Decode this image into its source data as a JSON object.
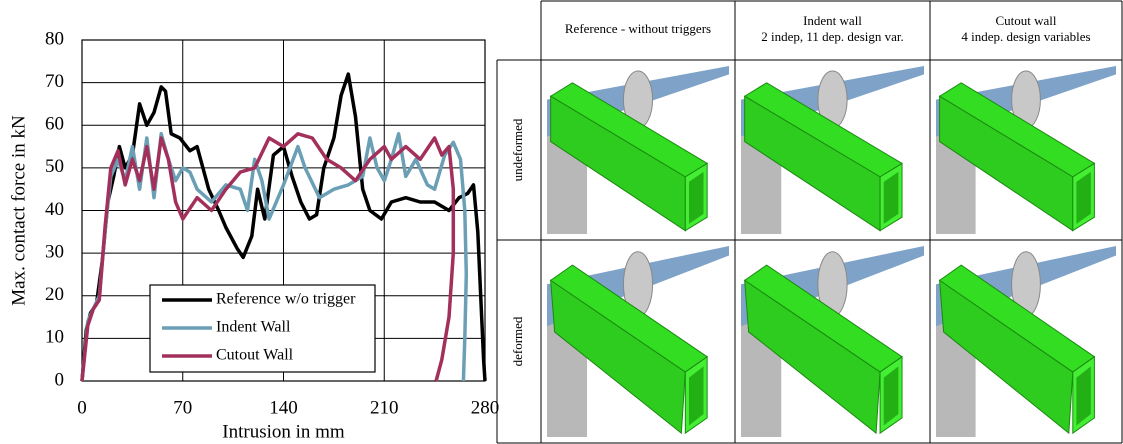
{
  "chart_data": {
    "type": "line",
    "x_label": "Intrusion in mm",
    "y_label": "Max. contact force in kN",
    "xlim": [
      0,
      280
    ],
    "xticks": [
      0,
      70,
      140,
      210,
      280
    ],
    "ylim": [
      0,
      80
    ],
    "yticks": [
      0,
      10,
      20,
      30,
      40,
      50,
      60,
      70,
      80
    ],
    "grid": true,
    "legend": "lower center",
    "series": [
      {
        "name": "Reference w/o trigger",
        "color": "#000000",
        "x": [
          0,
          3,
          6,
          10,
          14,
          18,
          22,
          26,
          30,
          35,
          40,
          45,
          50,
          55,
          58,
          62,
          68,
          75,
          80,
          88,
          95,
          100,
          108,
          112,
          118,
          122,
          127,
          133,
          140,
          146,
          152,
          158,
          163,
          168,
          175,
          180,
          185,
          190,
          195,
          200,
          208,
          215,
          225,
          235,
          245,
          255,
          262,
          268,
          272,
          275,
          277,
          279,
          280
        ],
        "values": [
          0,
          12,
          16,
          18,
          28,
          42,
          48,
          55,
          50,
          53,
          65,
          60,
          63,
          69,
          68,
          58,
          57,
          54,
          55,
          45,
          40,
          36,
          31,
          29,
          34,
          45,
          38,
          53,
          55,
          48,
          42,
          38,
          39,
          50,
          57,
          67,
          72,
          62,
          45,
          40,
          38,
          42,
          43,
          42,
          42,
          40,
          43,
          44,
          46,
          35,
          20,
          5,
          0
        ]
      },
      {
        "name": "Indent Wall",
        "color": "#6a9fb5",
        "x": [
          0,
          4,
          8,
          12,
          16,
          20,
          25,
          30,
          35,
          40,
          45,
          50,
          55,
          60,
          65,
          70,
          75,
          80,
          90,
          100,
          110,
          115,
          120,
          125,
          130,
          140,
          150,
          155,
          165,
          175,
          185,
          195,
          200,
          205,
          210,
          215,
          220,
          225,
          232,
          240,
          245,
          252,
          258,
          263,
          266,
          267,
          266,
          265
        ],
        "values": [
          0,
          14,
          17,
          20,
          35,
          48,
          52,
          47,
          55,
          45,
          57,
          43,
          58,
          52,
          47,
          50,
          49,
          45,
          42,
          46,
          45,
          40,
          52,
          47,
          38,
          46,
          55,
          50,
          43,
          45,
          46,
          48,
          57,
          50,
          47,
          52,
          58,
          48,
          52,
          46,
          45,
          53,
          56,
          52,
          40,
          25,
          10,
          0
        ]
      },
      {
        "name": "Cutout Wall",
        "color": "#a3305b",
        "x": [
          0,
          4,
          8,
          12,
          16,
          20,
          25,
          30,
          35,
          40,
          45,
          50,
          55,
          60,
          65,
          70,
          80,
          90,
          100,
          110,
          120,
          130,
          140,
          150,
          160,
          170,
          180,
          190,
          200,
          210,
          215,
          225,
          235,
          245,
          250,
          255,
          258,
          258,
          255,
          250,
          246
        ],
        "values": [
          0,
          13,
          17,
          19,
          36,
          50,
          54,
          46,
          52,
          47,
          55,
          45,
          57,
          52,
          42,
          38,
          43,
          40,
          45,
          49,
          50,
          57,
          55,
          58,
          57,
          52,
          50,
          47,
          52,
          55,
          52,
          55,
          52,
          57,
          53,
          55,
          45,
          30,
          15,
          5,
          0
        ]
      }
    ]
  },
  "table": {
    "columns": [
      [
        "Reference - without triggers"
      ],
      [
        "Indent wall",
        "2 indep, 11 dep. design var."
      ],
      [
        "Cutout wall",
        "4 indep. design variables"
      ]
    ],
    "rows": [
      "undeformed",
      "deformed"
    ]
  }
}
